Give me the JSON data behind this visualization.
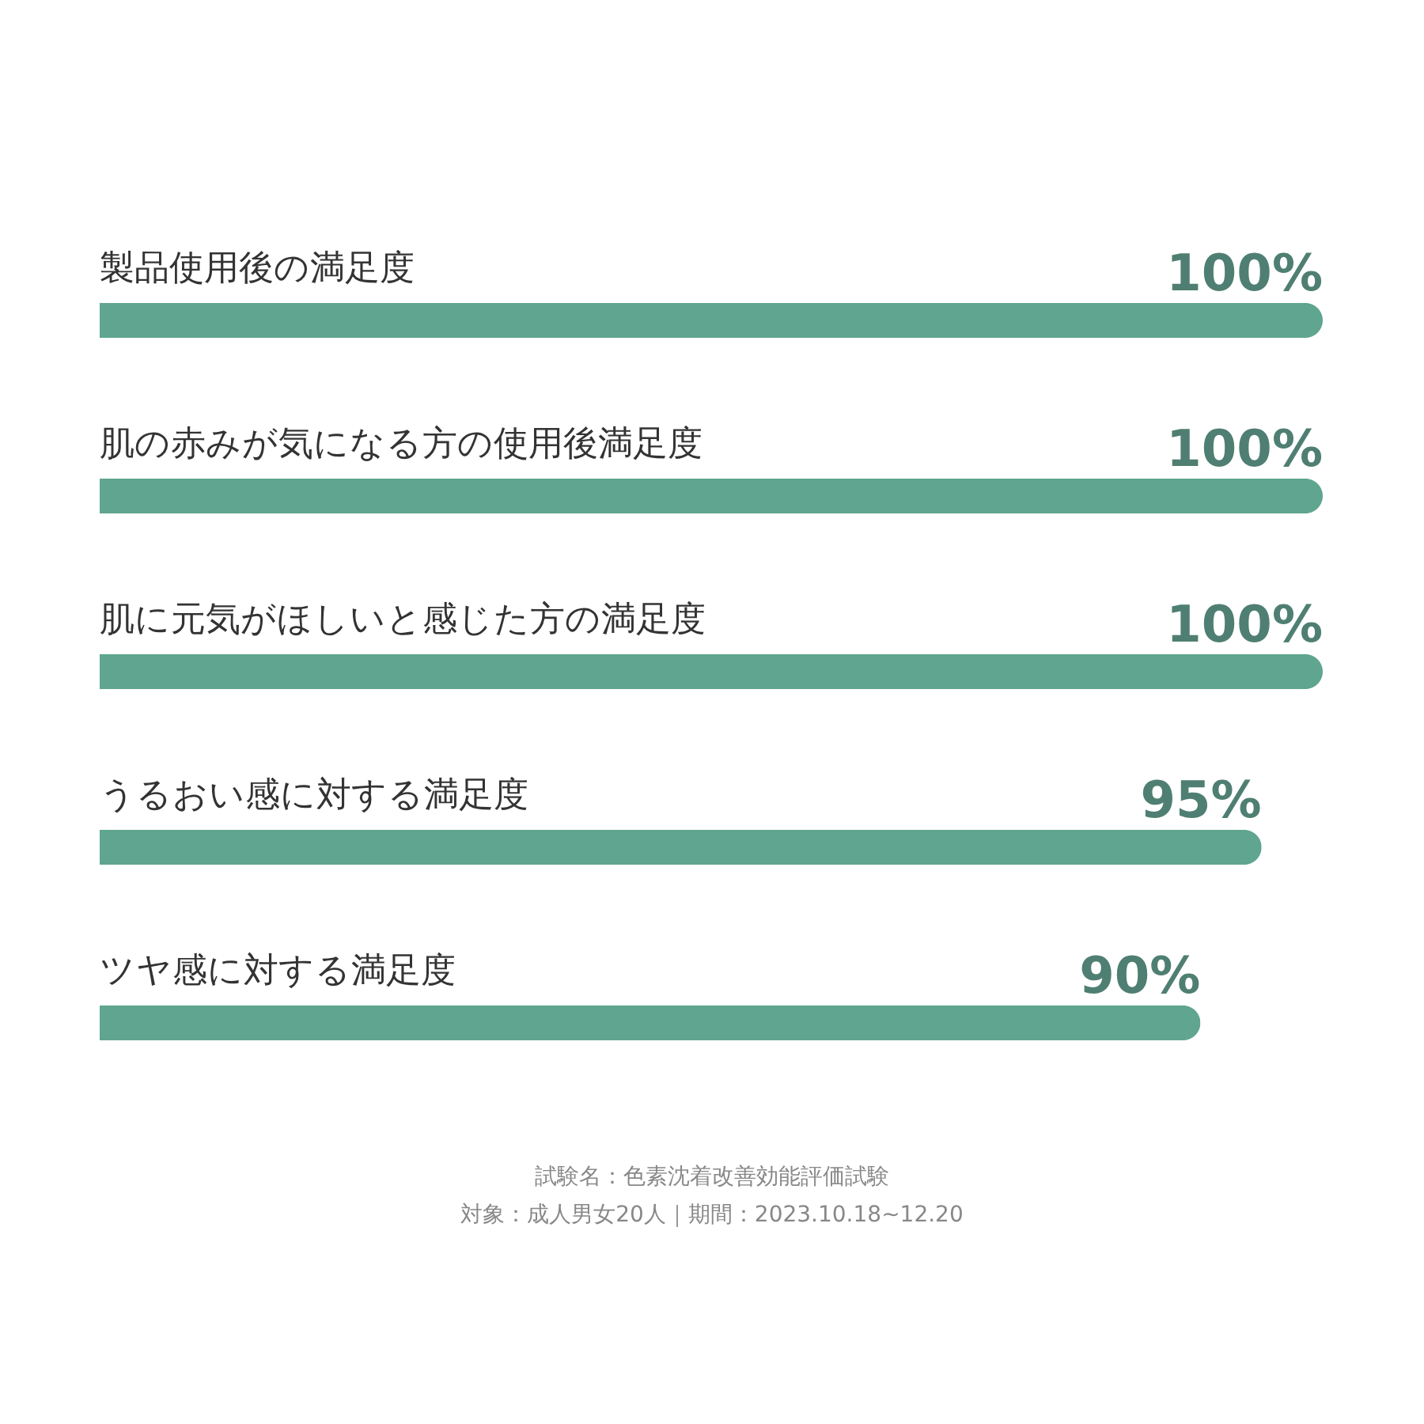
{
  "chart_data": {
    "type": "bar",
    "orientation": "horizontal",
    "categories": [
      "製品使用後の満足度",
      "肌の赤みが気になる方の使用後満足度",
      "肌に元気がほしいと感じた方の満足度",
      "うるおい感に対する満足度",
      "ツヤ感に対する満足度"
    ],
    "series": [
      {
        "color": "#5fa590",
        "values": [
          100,
          100,
          100,
          95,
          90
        ],
        "value_labels": [
          "100%",
          "100%",
          "100%",
          "95%",
          "90%"
        ]
      }
    ],
    "annotations": [
      "試験名：色素沈着改善効能評価試験",
      "対象：成人男女20人｜期間：2023.10.18~12.20"
    ]
  }
}
